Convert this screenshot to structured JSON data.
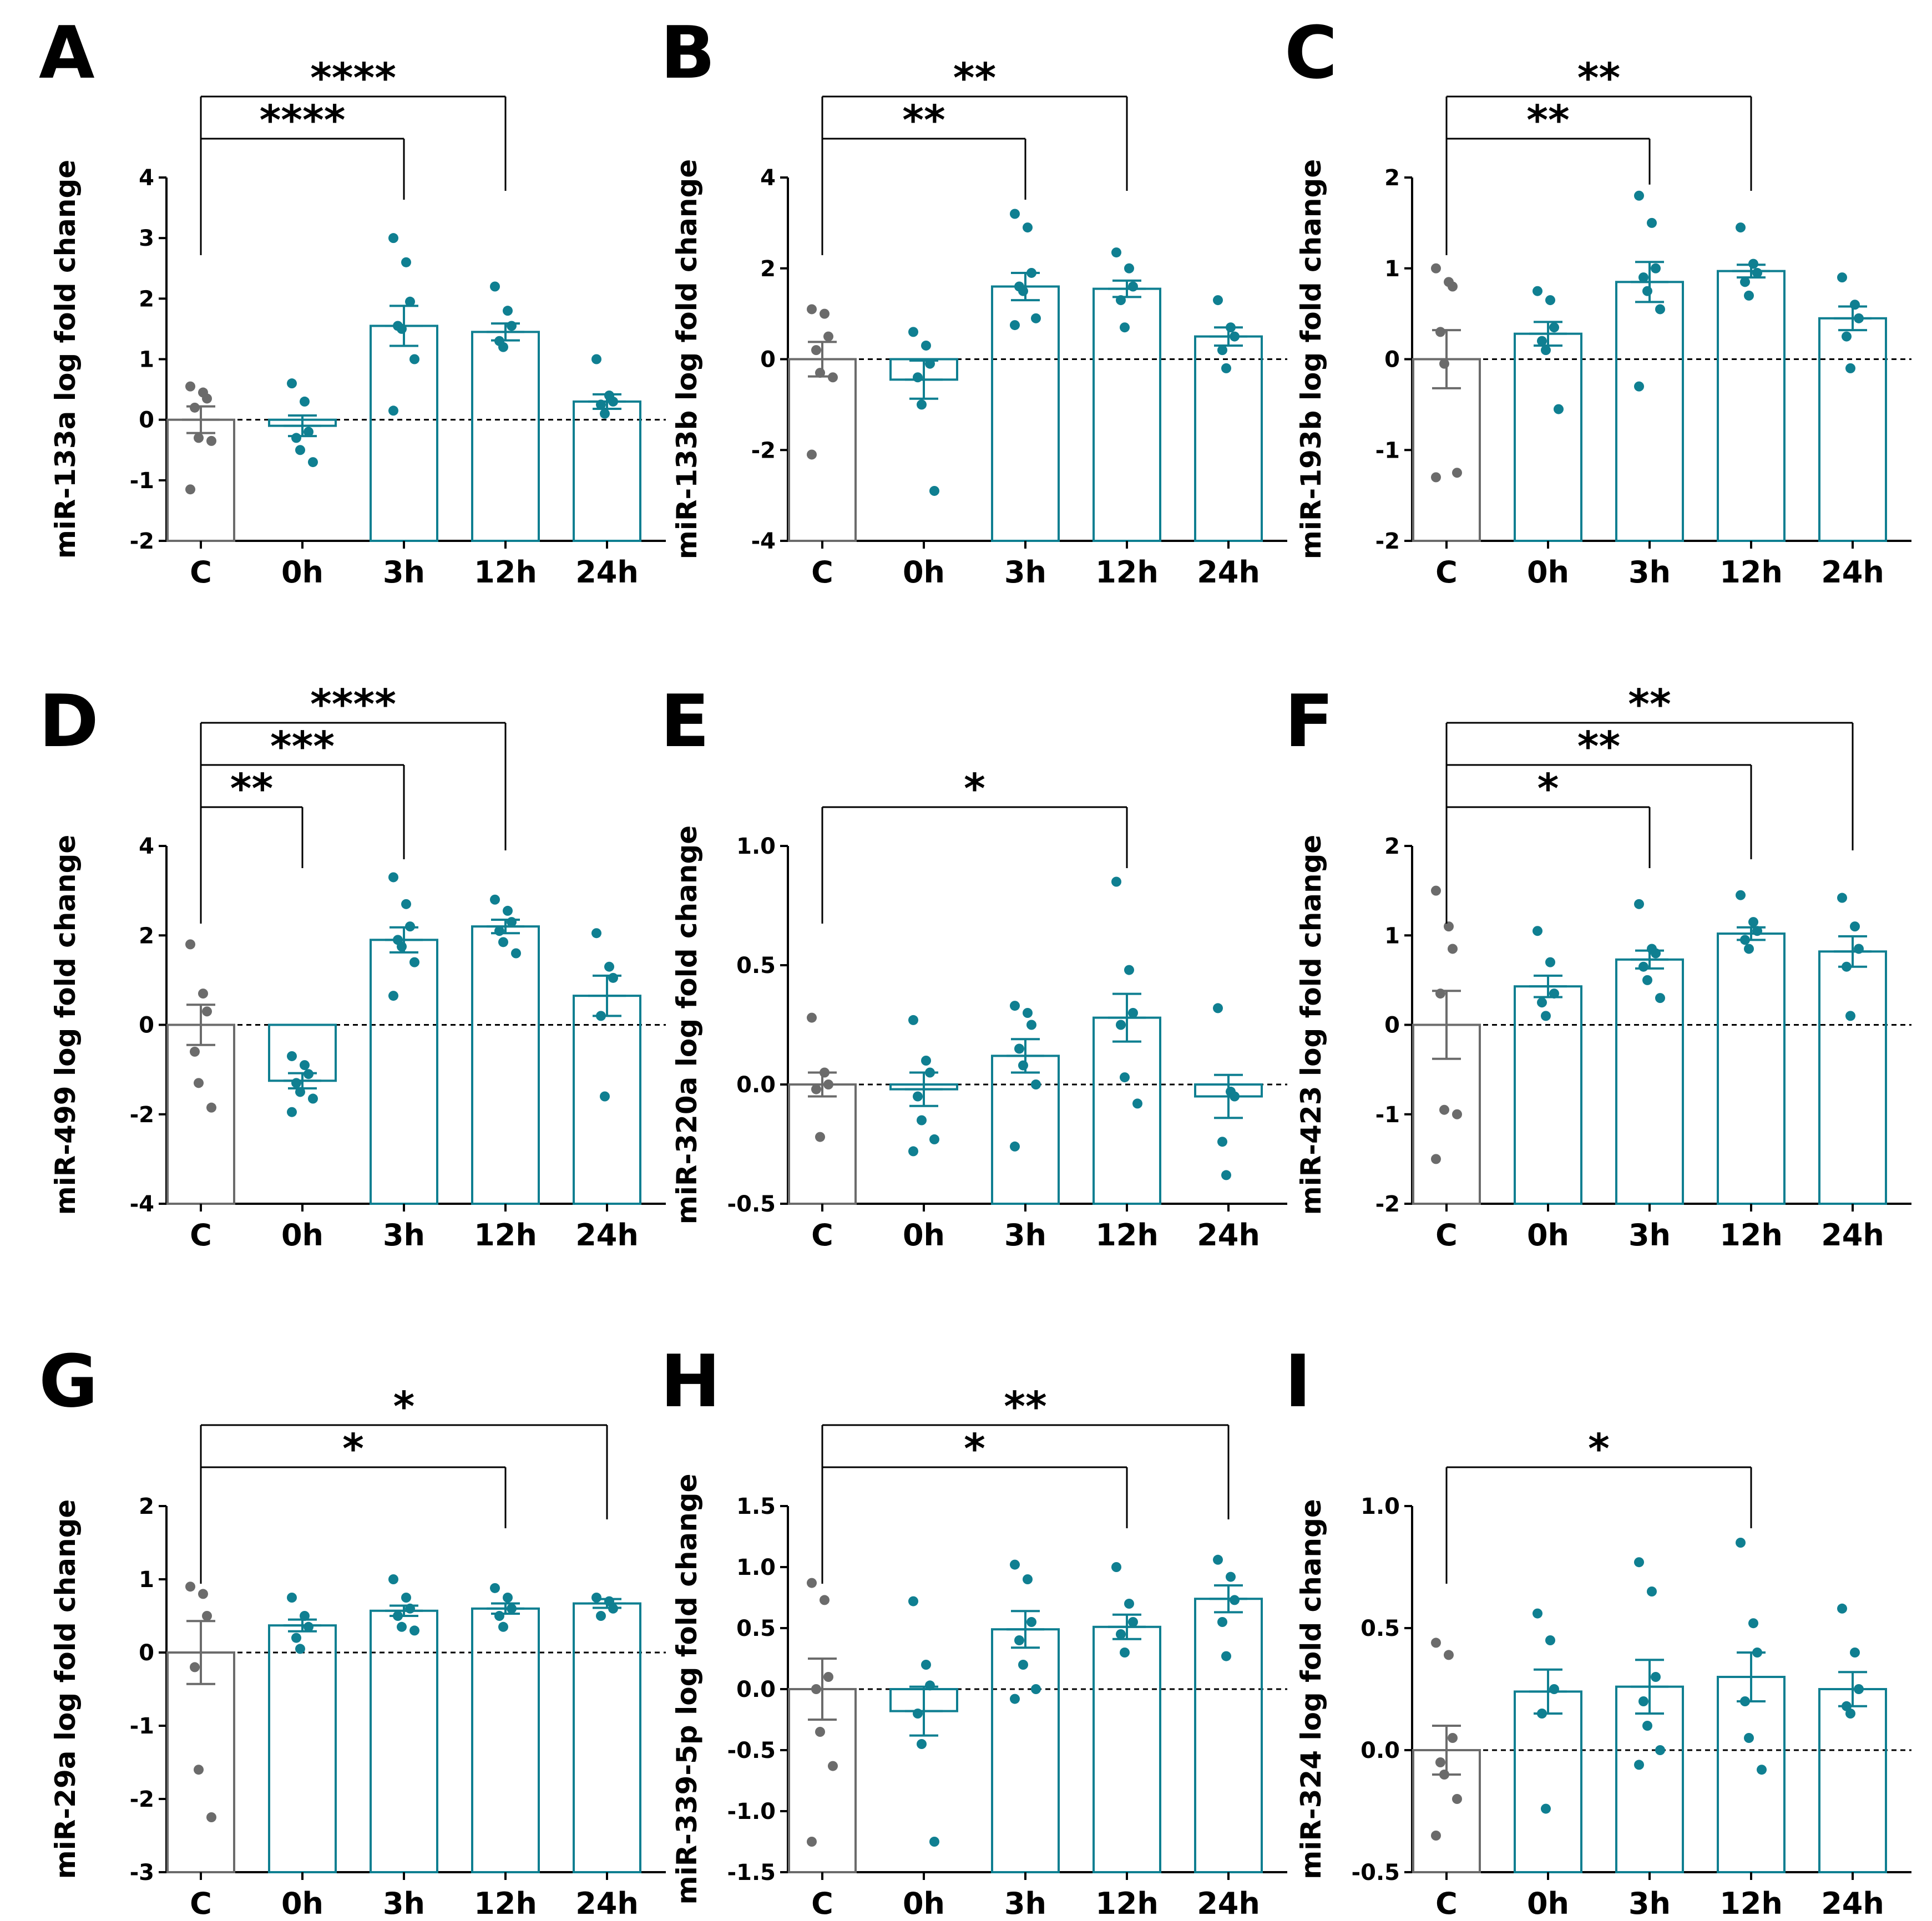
{
  "colors": {
    "control": "#6b6b6b",
    "treated": "#0f7f91",
    "axis": "#000000"
  },
  "chart_data": [
    {
      "panel": "A",
      "type": "bar",
      "ylabel": "miR-133a log fold change",
      "ylim": [
        -2,
        4
      ],
      "yticks": [
        "-2",
        "-1",
        "0",
        "1",
        "2",
        "3",
        "4"
      ],
      "ytick_values": [
        -2,
        -1,
        0,
        1,
        2,
        3,
        4
      ],
      "categories": [
        "C",
        "0h",
        "3h",
        "12h",
        "24h"
      ],
      "means": [
        0,
        -0.1,
        1.55,
        1.45,
        0.3
      ],
      "sem": [
        0.22,
        0.17,
        0.33,
        0.14,
        0.12
      ],
      "points": [
        [
          0.55,
          0.45,
          0.35,
          0.2,
          -0.3,
          -0.35,
          -1.15
        ],
        [
          0.6,
          0.3,
          -0.2,
          -0.3,
          -0.5,
          -0.7
        ],
        [
          3.0,
          2.6,
          1.95,
          1.55,
          1.5,
          1.0,
          0.15
        ],
        [
          2.2,
          1.8,
          1.55,
          1.3,
          1.2
        ],
        [
          1.0,
          0.4,
          0.3,
          0.25,
          0.1
        ]
      ],
      "significance": [
        {
          "to": 2,
          "label": "****"
        },
        {
          "to": 3,
          "label": "****"
        }
      ]
    },
    {
      "panel": "B",
      "type": "bar",
      "ylabel": "miR-133b log fold change",
      "ylim": [
        -4,
        4
      ],
      "yticks": [
        "-4",
        "-2",
        "0",
        "2",
        "4"
      ],
      "ytick_values": [
        -4,
        -2,
        0,
        2,
        4
      ],
      "categories": [
        "C",
        "0h",
        "3h",
        "12h",
        "24h"
      ],
      "means": [
        0,
        -0.45,
        1.6,
        1.55,
        0.5
      ],
      "sem": [
        0.38,
        0.42,
        0.3,
        0.18,
        0.2
      ],
      "points": [
        [
          1.1,
          1.0,
          0.5,
          0.2,
          -0.3,
          -0.4,
          -2.1
        ],
        [
          0.6,
          0.3,
          -0.1,
          -0.4,
          -1.0,
          -2.9
        ],
        [
          3.2,
          2.9,
          1.9,
          1.6,
          1.5,
          0.9,
          0.75
        ],
        [
          2.35,
          2.0,
          1.6,
          1.3,
          0.7
        ],
        [
          1.3,
          0.7,
          0.5,
          0.2,
          -0.2
        ]
      ],
      "significance": [
        {
          "to": 2,
          "label": "**"
        },
        {
          "to": 3,
          "label": "**"
        }
      ]
    },
    {
      "panel": "C",
      "type": "bar",
      "ylabel": "miR-193b log fold change",
      "ylim": [
        -2,
        2
      ],
      "yticks": [
        "-2",
        "-1",
        "0",
        "1",
        "2"
      ],
      "ytick_values": [
        -2,
        -1,
        0,
        1,
        2
      ],
      "categories": [
        "C",
        "0h",
        "3h",
        "12h",
        "24h"
      ],
      "means": [
        0,
        0.28,
        0.85,
        0.97,
        0.45
      ],
      "sem": [
        0.32,
        0.13,
        0.22,
        0.07,
        0.13
      ],
      "points": [
        [
          1.0,
          0.85,
          0.8,
          0.3,
          -0.05,
          -1.25,
          -1.3
        ],
        [
          0.75,
          0.65,
          0.35,
          0.2,
          0.1,
          -0.55
        ],
        [
          1.8,
          1.5,
          1.0,
          0.9,
          0.75,
          0.55,
          -0.3
        ],
        [
          1.45,
          1.05,
          0.95,
          0.85,
          0.7
        ],
        [
          0.9,
          0.6,
          0.45,
          0.25,
          -0.1
        ]
      ],
      "significance": [
        {
          "to": 2,
          "label": "**"
        },
        {
          "to": 3,
          "label": "**"
        }
      ]
    },
    {
      "panel": "D",
      "type": "bar",
      "ylabel": "miR-499 log fold change",
      "ylim": [
        -4,
        4
      ],
      "yticks": [
        "-4",
        "-2",
        "0",
        "2",
        "4"
      ],
      "ytick_values": [
        -4,
        -2,
        0,
        2,
        4
      ],
      "categories": [
        "C",
        "0h",
        "3h",
        "12h",
        "24h"
      ],
      "means": [
        0,
        -1.25,
        1.9,
        2.2,
        0.65
      ],
      "sem": [
        0.45,
        0.17,
        0.28,
        0.15,
        0.45
      ],
      "points": [
        [
          1.8,
          0.7,
          0.3,
          -0.6,
          -1.3,
          -1.85
        ],
        [
          -0.7,
          -0.9,
          -1.1,
          -1.3,
          -1.5,
          -1.65,
          -1.95
        ],
        [
          3.3,
          2.7,
          2.2,
          1.9,
          1.75,
          1.4,
          0.65
        ],
        [
          2.8,
          2.55,
          2.3,
          2.1,
          1.85,
          1.6
        ],
        [
          2.05,
          1.3,
          1.05,
          0.2,
          -1.6
        ]
      ],
      "significance": [
        {
          "to": 1,
          "label": "**"
        },
        {
          "to": 2,
          "label": "***"
        },
        {
          "to": 3,
          "label": "****"
        }
      ]
    },
    {
      "panel": "E",
      "type": "bar",
      "ylabel": "miR-320a log fold change",
      "ylim": [
        -0.5,
        1.0
      ],
      "yticks": [
        "-0.5",
        "0.0",
        "0.5",
        "1.0"
      ],
      "ytick_values": [
        -0.5,
        0,
        0.5,
        1.0
      ],
      "categories": [
        "C",
        "0h",
        "3h",
        "12h",
        "24h"
      ],
      "means": [
        0,
        -0.02,
        0.12,
        0.28,
        -0.05
      ],
      "sem": [
        0.05,
        0.07,
        0.07,
        0.1,
        0.09
      ],
      "points": [
        [
          0.28,
          0.05,
          0.0,
          -0.02,
          -0.22
        ],
        [
          0.27,
          0.1,
          0.05,
          -0.05,
          -0.15,
          -0.23,
          -0.28
        ],
        [
          0.33,
          0.3,
          0.25,
          0.15,
          0.08,
          0.0,
          -0.26
        ],
        [
          0.85,
          0.48,
          0.3,
          0.25,
          0.03,
          -0.08
        ],
        [
          0.32,
          -0.03,
          -0.05,
          -0.24,
          -0.38
        ]
      ],
      "significance": [
        {
          "to": 3,
          "label": "*"
        }
      ]
    },
    {
      "panel": "F",
      "type": "bar",
      "ylabel": "miR-423 log fold change",
      "ylim": [
        -2,
        2
      ],
      "yticks": [
        "-2",
        "-1",
        "0",
        "1",
        "2"
      ],
      "ytick_values": [
        -2,
        -1,
        0,
        1,
        2
      ],
      "categories": [
        "C",
        "0h",
        "3h",
        "12h",
        "24h"
      ],
      "means": [
        0,
        0.43,
        0.73,
        1.02,
        0.82
      ],
      "sem": [
        0.38,
        0.12,
        0.1,
        0.07,
        0.17
      ],
      "points": [
        [
          1.5,
          1.1,
          0.85,
          0.35,
          -0.95,
          -1.0,
          -1.5
        ],
        [
          1.05,
          0.7,
          0.35,
          0.25,
          0.1
        ],
        [
          1.35,
          0.85,
          0.8,
          0.65,
          0.5,
          0.3
        ],
        [
          1.45,
          1.15,
          1.05,
          0.95,
          0.85
        ],
        [
          1.42,
          1.1,
          0.85,
          0.65,
          0.1
        ]
      ],
      "significance": [
        {
          "to": 2,
          "label": "*"
        },
        {
          "to": 3,
          "label": "**"
        },
        {
          "to": 4,
          "label": "**"
        }
      ]
    },
    {
      "panel": "G",
      "type": "bar",
      "ylabel": "miR-29a log fold change",
      "ylim": [
        -3,
        2
      ],
      "yticks": [
        "-3",
        "-2",
        "-1",
        "0",
        "1",
        "2"
      ],
      "ytick_values": [
        -3,
        -2,
        -1,
        0,
        1,
        2
      ],
      "categories": [
        "C",
        "0h",
        "3h",
        "12h",
        "24h"
      ],
      "means": [
        0,
        0.37,
        0.57,
        0.6,
        0.67
      ],
      "sem": [
        0.43,
        0.08,
        0.07,
        0.07,
        0.06
      ],
      "points": [
        [
          0.9,
          0.8,
          0.5,
          -0.2,
          -1.6,
          -2.25
        ],
        [
          0.75,
          0.5,
          0.35,
          0.2,
          0.05
        ],
        [
          1.0,
          0.75,
          0.6,
          0.5,
          0.35,
          0.3
        ],
        [
          0.88,
          0.75,
          0.6,
          0.5,
          0.35
        ],
        [
          0.75,
          0.7,
          0.6,
          0.5
        ]
      ],
      "significance": [
        {
          "to": 3,
          "label": "*"
        },
        {
          "to": 4,
          "label": "*"
        }
      ]
    },
    {
      "panel": "H",
      "type": "bar",
      "ylabel": "miR-339-5p log fold change",
      "ylim": [
        -1.5,
        1.5
      ],
      "yticks": [
        "-1.5",
        "-1.0",
        "-0.5",
        "0.0",
        "0.5",
        "1.0",
        "1.5"
      ],
      "ytick_values": [
        -1.5,
        -1,
        -0.5,
        0,
        0.5,
        1,
        1.5
      ],
      "categories": [
        "C",
        "0h",
        "3h",
        "12h",
        "24h"
      ],
      "means": [
        0,
        -0.18,
        0.49,
        0.51,
        0.74
      ],
      "sem": [
        0.25,
        0.2,
        0.15,
        0.1,
        0.11
      ],
      "points": [
        [
          0.87,
          0.73,
          0.1,
          0.0,
          -0.35,
          -0.63,
          -1.25
        ],
        [
          0.72,
          0.2,
          0.03,
          -0.2,
          -0.45,
          -1.25
        ],
        [
          1.02,
          0.9,
          0.55,
          0.4,
          0.2,
          0.0,
          -0.08
        ],
        [
          1.0,
          0.7,
          0.55,
          0.45,
          0.3
        ],
        [
          1.06,
          0.92,
          0.73,
          0.55,
          0.27
        ]
      ],
      "significance": [
        {
          "to": 3,
          "label": "*"
        },
        {
          "to": 4,
          "label": "**"
        }
      ]
    },
    {
      "panel": "I",
      "type": "bar",
      "ylabel": "miR-324 log fold change",
      "ylim": [
        -0.5,
        1.0
      ],
      "yticks": [
        "-0.5",
        "0.0",
        "0.5",
        "1.0"
      ],
      "ytick_values": [
        -0.5,
        0,
        0.5,
        1.0
      ],
      "categories": [
        "C",
        "0h",
        "3h",
        "12h",
        "24h"
      ],
      "means": [
        0,
        0.24,
        0.26,
        0.3,
        0.25
      ],
      "sem": [
        0.1,
        0.09,
        0.11,
        0.1,
        0.07
      ],
      "points": [
        [
          0.44,
          0.39,
          0.05,
          -0.05,
          -0.1,
          -0.2,
          -0.35
        ],
        [
          0.56,
          0.45,
          0.25,
          0.15,
          -0.24
        ],
        [
          0.77,
          0.65,
          0.3,
          0.2,
          0.1,
          0.0,
          -0.06
        ],
        [
          0.85,
          0.52,
          0.4,
          0.2,
          0.05,
          -0.08
        ],
        [
          0.58,
          0.4,
          0.25,
          0.18,
          0.15
        ]
      ],
      "significance": [
        {
          "to": 3,
          "label": "*"
        }
      ]
    }
  ]
}
